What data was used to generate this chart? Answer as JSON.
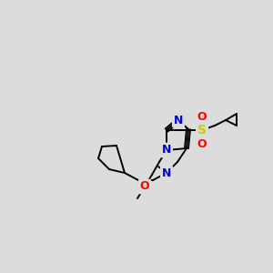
{
  "bg_color": "#dcdcdc",
  "atom_colors": {
    "N": "#0000ee",
    "S": "#cccc00",
    "O": "#ff0000",
    "C": "#000000"
  },
  "bond_color": "#000000",
  "bond_width": 1.4,
  "dpi": 100,
  "fig_width": 3.0,
  "fig_height": 3.0
}
